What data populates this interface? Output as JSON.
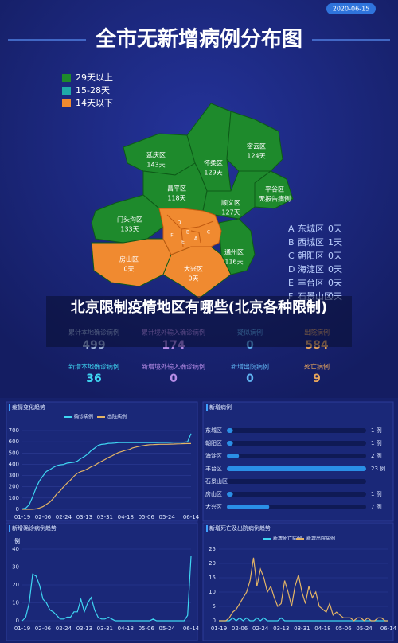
{
  "header": {
    "date": "2020-06-15",
    "title": "全市无新增病例分布图"
  },
  "legend": [
    {
      "label": "29天以上",
      "color": "#1e8a2c"
    },
    {
      "label": "15-28天",
      "color": "#1fa9a8"
    },
    {
      "label": "14天以下",
      "color": "#f08a30"
    }
  ],
  "map": {
    "districts": [
      {
        "name": "延庆区",
        "days": "143天",
        "color": "#1e8a2c"
      },
      {
        "name": "怀柔区",
        "days": "129天",
        "color": "#1e8a2c"
      },
      {
        "name": "密云区",
        "days": "124天",
        "color": "#1e8a2c"
      },
      {
        "name": "昌平区",
        "days": "118天",
        "color": "#1e8a2c"
      },
      {
        "name": "平谷区",
        "days": "无报告病例",
        "color": "#1e8a2c"
      },
      {
        "name": "顺义区",
        "days": "127天",
        "color": "#1e8a2c"
      },
      {
        "name": "门头沟区",
        "days": "133天",
        "color": "#1e8a2c"
      },
      {
        "name": "通州区",
        "days": "116天",
        "color": "#1e8a2c"
      },
      {
        "name": "房山区",
        "days": "0天",
        "color": "#f08a30"
      },
      {
        "name": "大兴区",
        "days": "0天",
        "color": "#f08a30"
      }
    ],
    "list": [
      {
        "letter": "A",
        "name": "东城区",
        "days": "0天"
      },
      {
        "letter": "B",
        "name": "西城区",
        "days": "1天"
      },
      {
        "letter": "C",
        "name": "朝阳区",
        "days": "0天"
      },
      {
        "letter": "D",
        "name": "海淀区",
        "days": "0天"
      },
      {
        "letter": "E",
        "name": "丰台区",
        "days": "0天"
      },
      {
        "letter": "F",
        "name": "石景山区",
        "days": "0天"
      }
    ]
  },
  "caption": "北京限制疫情地区有哪些(北京各种限制)",
  "stats": [
    {
      "label": "累计本地确诊病例",
      "value": 499,
      "color": "#9fb3d8"
    },
    {
      "label": "累计境外输入确诊病例",
      "value": 174,
      "color": "#b58be6"
    },
    {
      "label": "疑似病例",
      "value": 0,
      "color": "#5fb2f0"
    },
    {
      "label": "出院病例",
      "value": 584,
      "color": "#e9a65c"
    },
    {
      "label": "新增本地确诊病例",
      "value": 36,
      "color": "#3fd6f2"
    },
    {
      "label": "新增境外输入确诊病例",
      "value": 0,
      "color": "#b58be6"
    },
    {
      "label": "新增出院病例",
      "value": 0,
      "color": "#5fb2f0"
    },
    {
      "label": "死亡病例",
      "value": 9,
      "color": "#e9a65c"
    }
  ],
  "chart_data": [
    {
      "type": "line",
      "title": "疫情变化趋势",
      "grid": true,
      "categories": [
        "01-19",
        null,
        null,
        null,
        null,
        null,
        "02-06",
        null,
        null,
        null,
        null,
        null,
        "02-24",
        null,
        null,
        null,
        null,
        null,
        "03-13",
        null,
        null,
        null,
        null,
        null,
        "03-31",
        null,
        null,
        null,
        null,
        null,
        "04-18",
        null,
        null,
        null,
        null,
        null,
        "05-06",
        null,
        null,
        null,
        null,
        null,
        "05-24",
        null,
        null,
        null,
        null,
        null,
        null,
        "06-14"
      ],
      "series": [
        {
          "name": "确诊病例",
          "color": "#3fd6f2",
          "values": [
            5,
            10,
            41,
            111,
            191,
            253,
            297,
            337,
            352,
            372,
            388,
            395,
            399,
            410,
            414,
            418,
            428,
            452,
            469,
            491,
            522,
            544,
            568,
            577,
            580,
            586,
            587,
            589,
            593,
            593,
            593,
            593,
            593,
            593,
            593,
            593,
            593,
            593,
            593,
            593,
            594,
            594,
            594,
            595,
            597,
            597,
            597,
            597,
            600,
            673
          ]
        },
        {
          "name": "出院病例",
          "color": "#e3b466",
          "values": [
            0,
            0,
            0,
            1,
            4,
            12,
            24,
            44,
            64,
            96,
            137,
            165,
            200,
            232,
            260,
            294,
            320,
            336,
            345,
            360,
            378,
            390,
            410,
            426,
            442,
            460,
            474,
            490,
            505,
            515,
            525,
            530,
            545,
            553,
            560,
            565,
            570,
            574,
            575,
            576,
            578,
            578,
            578,
            579,
            580,
            581,
            582,
            583,
            584,
            584
          ]
        }
      ],
      "ylim": [
        0,
        700
      ],
      "yticks": [
        0,
        100,
        200,
        300,
        400,
        500,
        600,
        700
      ]
    },
    {
      "type": "bar",
      "horizontal": true,
      "title": "新增病例",
      "categories": [
        "东城区",
        "朝阳区",
        "海淀区",
        "丰台区",
        "石景山区",
        "房山区",
        "大兴区"
      ],
      "values": [
        1,
        1,
        2,
        23,
        null,
        1,
        7
      ],
      "value_labels": [
        "1 例",
        "1 例",
        "2 例",
        "23 例",
        null,
        "1 例",
        "7 例"
      ],
      "color": "#2a8fe6"
    },
    {
      "type": "line",
      "title": "新增确诊病例趋势",
      "y_label": "例",
      "grid": true,
      "color": "#3fd6f2",
      "categories": [
        "01-19",
        null,
        null,
        null,
        null,
        null,
        "02-06",
        null,
        null,
        null,
        null,
        null,
        "02-24",
        null,
        null,
        null,
        null,
        null,
        "03-13",
        null,
        null,
        null,
        null,
        null,
        "03-31",
        null,
        null,
        null,
        null,
        null,
        "04-18",
        null,
        null,
        null,
        null,
        null,
        "05-06",
        null,
        null,
        null,
        null,
        null,
        "05-24",
        null,
        null,
        null,
        null,
        null,
        null,
        "06-14"
      ],
      "values": [
        0,
        2,
        10,
        26,
        25,
        20,
        12,
        10,
        6,
        5,
        3,
        1,
        1,
        2,
        2,
        5,
        5,
        12,
        5,
        10,
        13,
        6,
        2,
        1,
        1,
        2,
        1,
        0,
        0,
        0,
        0,
        0,
        0,
        0,
        0,
        0,
        0,
        0,
        1,
        0,
        0,
        0,
        0,
        0,
        0,
        0,
        0,
        0,
        3,
        36
      ],
      "ylim": [
        0,
        40
      ],
      "yticks": [
        0,
        10,
        20,
        30,
        40
      ]
    },
    {
      "type": "line",
      "title": "新增死亡及出院病例趋势",
      "y_label": "例",
      "grid": true,
      "categories": [
        "01-19",
        null,
        null,
        null,
        null,
        null,
        "02-06",
        null,
        null,
        null,
        null,
        null,
        "02-24",
        null,
        null,
        null,
        null,
        null,
        "03-13",
        null,
        null,
        null,
        null,
        null,
        "03-31",
        null,
        null,
        null,
        null,
        null,
        "04-18",
        null,
        null,
        null,
        null,
        null,
        "05-06",
        null,
        null,
        null,
        null,
        null,
        "05-24",
        null,
        null,
        null,
        null,
        null,
        null,
        "06-14"
      ],
      "series": [
        {
          "name": "新增死亡病例",
          "color": "#3fd6f2",
          "values": [
            0,
            0,
            0,
            0,
            1,
            0,
            1,
            0,
            1,
            0,
            0,
            1,
            0,
            1,
            0,
            0,
            0,
            0,
            1,
            0,
            0,
            0,
            0,
            0,
            0,
            0,
            0,
            0,
            0,
            0,
            0,
            0,
            0,
            0,
            0,
            0,
            0,
            0,
            0,
            0,
            0,
            0,
            0,
            0,
            0,
            0,
            0,
            0,
            0,
            0
          ]
        },
        {
          "name": "新增出院病例",
          "color": "#e3b466",
          "values": [
            0,
            0,
            0,
            1,
            3,
            4,
            6,
            8,
            10,
            14,
            22,
            12,
            18,
            15,
            10,
            12,
            8,
            5,
            6,
            14,
            10,
            5,
            12,
            16,
            10,
            6,
            12,
            8,
            10,
            5,
            4,
            3,
            6,
            2,
            3,
            2,
            1,
            1,
            1,
            0,
            1,
            1,
            0,
            1,
            0,
            0,
            1,
            1,
            0,
            0
          ]
        }
      ],
      "ylim": [
        0,
        25
      ],
      "yticks": [
        0,
        5,
        10,
        15,
        20,
        25
      ]
    }
  ]
}
